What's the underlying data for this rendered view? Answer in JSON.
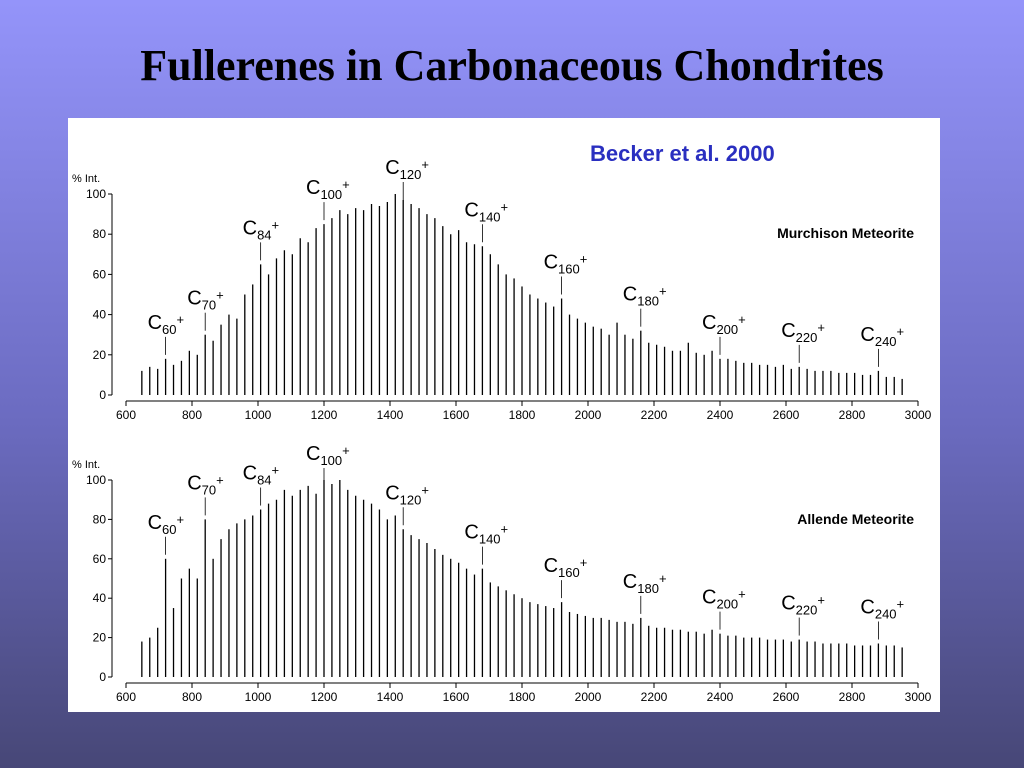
{
  "title": "Fullerenes in Carbonaceous Chondrites",
  "citation": "Becker et al. 2000",
  "chart_data": [
    {
      "type": "spectrum",
      "title": "Murchison Meteorite",
      "y_label": "% Int.",
      "color": "#000000",
      "xlim": [
        600,
        3000
      ],
      "xticks": [
        600,
        800,
        1000,
        1200,
        1400,
        1600,
        1800,
        2000,
        2200,
        2400,
        2600,
        2800,
        3000
      ],
      "ylim": [
        0,
        100
      ],
      "yticks": [
        0,
        20,
        40,
        60,
        80,
        100
      ],
      "x": [
        648,
        672,
        696,
        720,
        744,
        768,
        792,
        816,
        840,
        864,
        888,
        912,
        936,
        960,
        984,
        1008,
        1032,
        1056,
        1080,
        1104,
        1128,
        1152,
        1176,
        1200,
        1224,
        1248,
        1272,
        1296,
        1320,
        1344,
        1368,
        1392,
        1416,
        1440,
        1464,
        1488,
        1512,
        1536,
        1560,
        1584,
        1608,
        1632,
        1656,
        1680,
        1704,
        1728,
        1752,
        1776,
        1800,
        1824,
        1848,
        1872,
        1896,
        1920,
        1944,
        1968,
        1992,
        2016,
        2040,
        2064,
        2088,
        2112,
        2136,
        2160,
        2184,
        2208,
        2232,
        2256,
        2280,
        2304,
        2328,
        2352,
        2376,
        2400,
        2424,
        2448,
        2472,
        2496,
        2520,
        2544,
        2568,
        2592,
        2616,
        2640,
        2664,
        2688,
        2712,
        2736,
        2760,
        2784,
        2808,
        2832,
        2856,
        2880,
        2904,
        2928,
        2952
      ],
      "values": [
        12,
        14,
        13,
        18,
        15,
        17,
        22,
        20,
        30,
        27,
        35,
        40,
        38,
        50,
        55,
        65,
        60,
        68,
        72,
        70,
        78,
        76,
        83,
        85,
        88,
        92,
        90,
        93,
        92,
        95,
        94,
        96,
        100,
        97,
        95,
        93,
        90,
        88,
        84,
        80,
        82,
        76,
        75,
        74,
        70,
        65,
        60,
        58,
        54,
        50,
        48,
        46,
        44,
        48,
        40,
        38,
        36,
        34,
        33,
        30,
        36,
        30,
        28,
        32,
        26,
        25,
        24,
        22,
        22,
        26,
        21,
        20,
        22,
        18,
        18,
        17,
        16,
        16,
        15,
        15,
        14,
        15,
        13,
        14,
        13,
        12,
        12,
        12,
        11,
        11,
        11,
        10,
        10,
        12,
        9,
        9,
        8
      ],
      "annotations": [
        {
          "x": 720,
          "element": "C",
          "subscript": "60",
          "charge": "+"
        },
        {
          "x": 840,
          "element": "C",
          "subscript": "70",
          "charge": "+"
        },
        {
          "x": 1008,
          "element": "C",
          "subscript": "84",
          "charge": "+"
        },
        {
          "x": 1200,
          "element": "C",
          "subscript": "100",
          "charge": "+"
        },
        {
          "x": 1440,
          "element": "C",
          "subscript": "120",
          "charge": "+"
        },
        {
          "x": 1680,
          "element": "C",
          "subscript": "140",
          "charge": "+"
        },
        {
          "x": 1920,
          "element": "C",
          "subscript": "160",
          "charge": "+"
        },
        {
          "x": 2160,
          "element": "C",
          "subscript": "180",
          "charge": "+"
        },
        {
          "x": 2400,
          "element": "C",
          "subscript": "200",
          "charge": "+"
        },
        {
          "x": 2640,
          "element": "C",
          "subscript": "220",
          "charge": "+"
        },
        {
          "x": 2880,
          "element": "C",
          "subscript": "240",
          "charge": "+"
        }
      ]
    },
    {
      "type": "spectrum",
      "title": "Allende Meteorite",
      "y_label": "% Int.",
      "color": "#000000",
      "xlim": [
        600,
        3000
      ],
      "xticks": [
        600,
        800,
        1000,
        1200,
        1400,
        1600,
        1800,
        2000,
        2200,
        2400,
        2600,
        2800,
        3000
      ],
      "ylim": [
        0,
        100
      ],
      "yticks": [
        0,
        20,
        40,
        60,
        80,
        100
      ],
      "x": [
        648,
        672,
        696,
        720,
        744,
        768,
        792,
        816,
        840,
        864,
        888,
        912,
        936,
        960,
        984,
        1008,
        1032,
        1056,
        1080,
        1104,
        1128,
        1152,
        1176,
        1200,
        1224,
        1248,
        1272,
        1296,
        1320,
        1344,
        1368,
        1392,
        1416,
        1440,
        1464,
        1488,
        1512,
        1536,
        1560,
        1584,
        1608,
        1632,
        1656,
        1680,
        1704,
        1728,
        1752,
        1776,
        1800,
        1824,
        1848,
        1872,
        1896,
        1920,
        1944,
        1968,
        1992,
        2016,
        2040,
        2064,
        2088,
        2112,
        2136,
        2160,
        2184,
        2208,
        2232,
        2256,
        2280,
        2304,
        2328,
        2352,
        2376,
        2400,
        2424,
        2448,
        2472,
        2496,
        2520,
        2544,
        2568,
        2592,
        2616,
        2640,
        2664,
        2688,
        2712,
        2736,
        2760,
        2784,
        2808,
        2832,
        2856,
        2880,
        2904,
        2928,
        2952
      ],
      "values": [
        18,
        20,
        25,
        60,
        35,
        50,
        55,
        50,
        80,
        60,
        70,
        75,
        78,
        80,
        82,
        85,
        88,
        90,
        95,
        92,
        95,
        97,
        93,
        100,
        98,
        100,
        95,
        92,
        90,
        88,
        85,
        80,
        82,
        75,
        72,
        70,
        68,
        65,
        62,
        60,
        58,
        55,
        52,
        55,
        48,
        46,
        44,
        42,
        40,
        38,
        37,
        36,
        35,
        38,
        33,
        32,
        31,
        30,
        30,
        29,
        28,
        28,
        27,
        30,
        26,
        25,
        25,
        24,
        24,
        23,
        23,
        22,
        24,
        22,
        21,
        21,
        20,
        20,
        20,
        19,
        19,
        19,
        18,
        19,
        18,
        18,
        17,
        17,
        17,
        17,
        16,
        16,
        16,
        17,
        16,
        16,
        15
      ],
      "annotations": [
        {
          "x": 720,
          "element": "C",
          "subscript": "60",
          "charge": "+"
        },
        {
          "x": 840,
          "element": "C",
          "subscript": "70",
          "charge": "+"
        },
        {
          "x": 1008,
          "element": "C",
          "subscript": "84",
          "charge": "+"
        },
        {
          "x": 1200,
          "element": "C",
          "subscript": "100",
          "charge": "+"
        },
        {
          "x": 1440,
          "element": "C",
          "subscript": "120",
          "charge": "+"
        },
        {
          "x": 1680,
          "element": "C",
          "subscript": "140",
          "charge": "+"
        },
        {
          "x": 1920,
          "element": "C",
          "subscript": "160",
          "charge": "+"
        },
        {
          "x": 2160,
          "element": "C",
          "subscript": "180",
          "charge": "+"
        },
        {
          "x": 2400,
          "element": "C",
          "subscript": "200",
          "charge": "+"
        },
        {
          "x": 2640,
          "element": "C",
          "subscript": "220",
          "charge": "+"
        },
        {
          "x": 2880,
          "element": "C",
          "subscript": "240",
          "charge": "+"
        }
      ]
    }
  ]
}
